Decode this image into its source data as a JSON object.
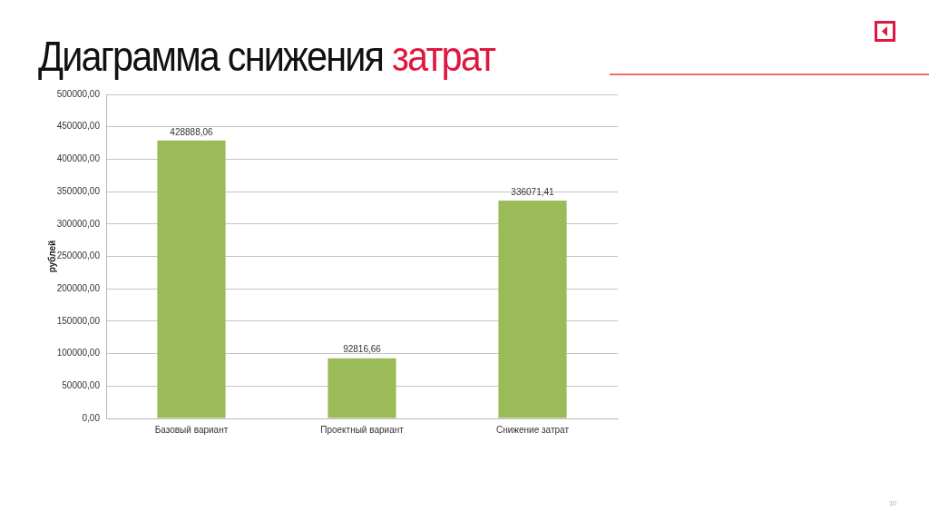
{
  "chart_data": {
    "type": "bar",
    "title": "Диаграмма снижения затрат",
    "ylabel": "рублей",
    "categories": [
      "Базовый вариант",
      "Проектный вариант",
      "Снижение затрат"
    ],
    "values": [
      428888.06,
      92816.66,
      336071.41
    ],
    "color": "#9bbb59",
    "value_labels": [
      "428888,06",
      "92816,66",
      "336071,41"
    ],
    "ylim": [
      0,
      500000
    ],
    "yticks": [
      {
        "value": 0,
        "label": "0,00"
      },
      {
        "value": 50000,
        "label": "50000,00"
      },
      {
        "value": 100000,
        "label": "100000,00"
      },
      {
        "value": 150000,
        "label": "150000,00"
      },
      {
        "value": 200000,
        "label": "200000,00"
      },
      {
        "value": 250000,
        "label": "250000,00"
      },
      {
        "value": 300000,
        "label": "300000,00"
      },
      {
        "value": 350000,
        "label": "350000,00"
      },
      {
        "value": 400000,
        "label": "400000,00"
      },
      {
        "value": 450000,
        "label": "450000,00"
      },
      {
        "value": 500000,
        "label": "500000,00"
      }
    ],
    "grid": "y",
    "annotations": [
      "10"
    ]
  }
}
